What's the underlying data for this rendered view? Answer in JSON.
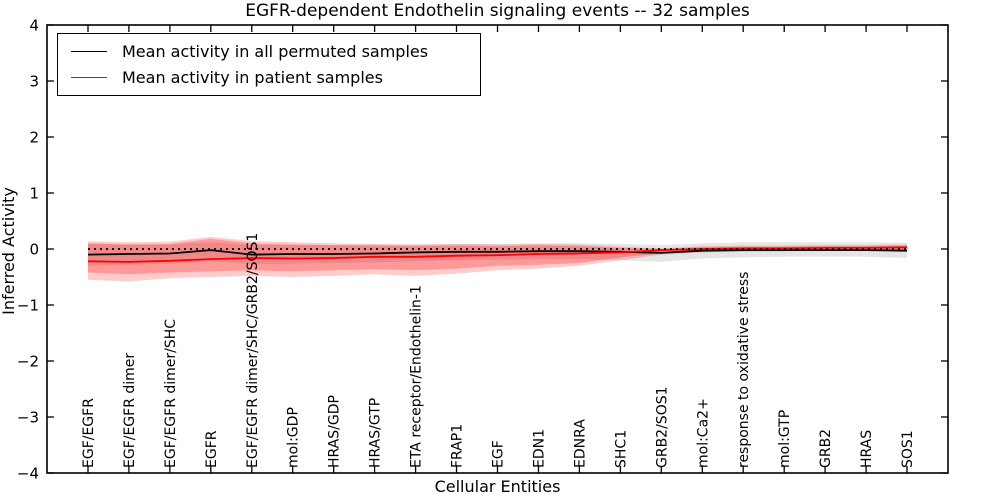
{
  "figure": {
    "title": "EGFR-dependent Endothelin signaling events -- 32 samples",
    "xlabel": "Cellular Entities",
    "ylabel": "Inferred Activity"
  },
  "legend": {
    "position": "upper left",
    "entries": [
      {
        "label": "Mean activity in all permuted samples",
        "color": "#000000"
      },
      {
        "label": "Mean activity in patient samples",
        "color": "#ff0000"
      }
    ]
  },
  "chart_data": {
    "type": "line",
    "title": "EGFR-dependent Endothelin signaling events -- 32 samples",
    "xlabel": "Cellular Entities",
    "ylabel": "Inferred Activity",
    "ylim": [
      -4,
      4
    ],
    "yticks": [
      4,
      3,
      2,
      1,
      0,
      -1,
      -2,
      -3,
      -4
    ],
    "grid": false,
    "legend_position": "upper left",
    "categories": [
      "EGF/EGFR",
      "EGF/EGFR dimer",
      "EGF/EGFR dimer/SHC",
      "EGFR",
      "EGF/EGFR dimer/SHC/GRB2/SOS1",
      "mol:GDP",
      "HRAS/GDP",
      "HRAS/GTP",
      "ETA receptor/Endothelin-1",
      "FRAP1",
      "EGF",
      "EDN1",
      "EDNRA",
      "SHC1",
      "GRB2/SOS1",
      "mol:Ca2+",
      "response to oxidative stress",
      "mol:GTP",
      "GRB2",
      "HRAS",
      "SOS1"
    ],
    "series": [
      {
        "name": "Mean activity in all permuted samples",
        "color": "#000000",
        "style": "solid",
        "values": [
          -0.1,
          -0.09,
          -0.08,
          -0.02,
          -0.1,
          -0.09,
          -0.09,
          -0.08,
          -0.06,
          -0.05,
          -0.05,
          -0.04,
          -0.04,
          -0.05,
          -0.07,
          -0.03,
          -0.02,
          -0.02,
          -0.02,
          -0.02,
          -0.03
        ]
      },
      {
        "name": "Mean activity in patient samples",
        "color": "#ff0000",
        "style": "solid",
        "values": [
          -0.22,
          -0.23,
          -0.21,
          -0.18,
          -0.16,
          -0.17,
          -0.16,
          -0.14,
          -0.14,
          -0.12,
          -0.11,
          -0.09,
          -0.08,
          -0.06,
          -0.02,
          0.0,
          0.01,
          0.01,
          0.02,
          0.02,
          0.03
        ]
      },
      {
        "name": "zero reference",
        "color": "#000000",
        "style": "dotted",
        "values": [
          0,
          0,
          0,
          0,
          0,
          0,
          0,
          0,
          0,
          0,
          0,
          0,
          0,
          0,
          0,
          0,
          0,
          0,
          0,
          0,
          0
        ]
      }
    ],
    "bands": [
      {
        "name": "permuted-samples-range",
        "color": "#000000",
        "alpha": 0.1,
        "upper": [
          0.09,
          0.08,
          0.08,
          0.12,
          0.07,
          0.07,
          0.07,
          0.08,
          0.08,
          0.09,
          0.09,
          0.1,
          0.1,
          0.09,
          0.07,
          0.1,
          0.12,
          0.12,
          0.12,
          0.12,
          0.11
        ],
        "lower": [
          -0.3,
          -0.28,
          -0.26,
          -0.22,
          -0.27,
          -0.26,
          -0.25,
          -0.24,
          -0.22,
          -0.2,
          -0.19,
          -0.18,
          -0.18,
          -0.2,
          -0.23,
          -0.17,
          -0.15,
          -0.14,
          -0.14,
          -0.14,
          -0.16
        ]
      },
      {
        "name": "patient-samples-range-outer",
        "color": "#ff0000",
        "alpha": 0.2,
        "upper": [
          0.14,
          0.12,
          0.13,
          0.22,
          0.14,
          0.12,
          0.1,
          0.09,
          0.08,
          0.09,
          0.08,
          0.09,
          0.08,
          0.04,
          0.01,
          0.05,
          0.06,
          0.06,
          0.07,
          0.07,
          0.08
        ],
        "lower": [
          -0.55,
          -0.58,
          -0.52,
          -0.5,
          -0.48,
          -0.5,
          -0.48,
          -0.45,
          -0.48,
          -0.44,
          -0.38,
          -0.35,
          -0.3,
          -0.2,
          -0.1,
          -0.06,
          -0.05,
          -0.04,
          -0.03,
          -0.03,
          -0.04
        ]
      },
      {
        "name": "patient-samples-range-inner",
        "color": "#ff0000",
        "alpha": 0.25,
        "upper": [
          0.1,
          0.08,
          0.09,
          0.18,
          0.1,
          0.08,
          0.07,
          0.06,
          0.05,
          0.06,
          0.05,
          0.06,
          0.05,
          0.02,
          0.0,
          0.03,
          0.04,
          0.04,
          0.05,
          0.05,
          0.06
        ],
        "lower": [
          -0.42,
          -0.45,
          -0.42,
          -0.4,
          -0.38,
          -0.4,
          -0.38,
          -0.36,
          -0.38,
          -0.35,
          -0.3,
          -0.28,
          -0.25,
          -0.15,
          -0.08,
          -0.04,
          -0.03,
          -0.02,
          -0.01,
          -0.01,
          -0.02
        ]
      }
    ]
  }
}
